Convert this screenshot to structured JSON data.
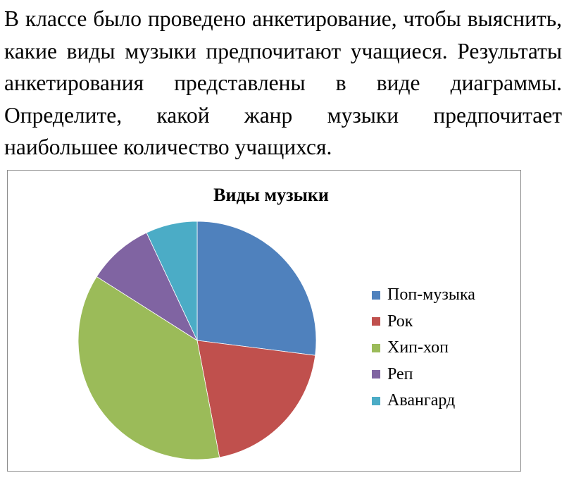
{
  "question": "В классе было проведено анкетирование, чтобы выяснить, какие виды музыки предпочитают учащиеся. Результаты анкетирования представлены в виде диаграммы. Определите, какой жанр музыки предпочитает наибольшее количество учащихся.",
  "chart_data": {
    "type": "pie",
    "title": "Виды музыки",
    "categories": [
      "Поп-музыка",
      "Рок",
      "Хип-хоп",
      "Реп",
      "Авангард"
    ],
    "values": [
      27,
      20,
      37,
      9,
      7
    ],
    "colors": [
      "#4f81bd",
      "#c0504d",
      "#9bbb59",
      "#8064a2",
      "#4bacc6"
    ],
    "start": "12 o'clock, clockwise",
    "legend": "right"
  }
}
